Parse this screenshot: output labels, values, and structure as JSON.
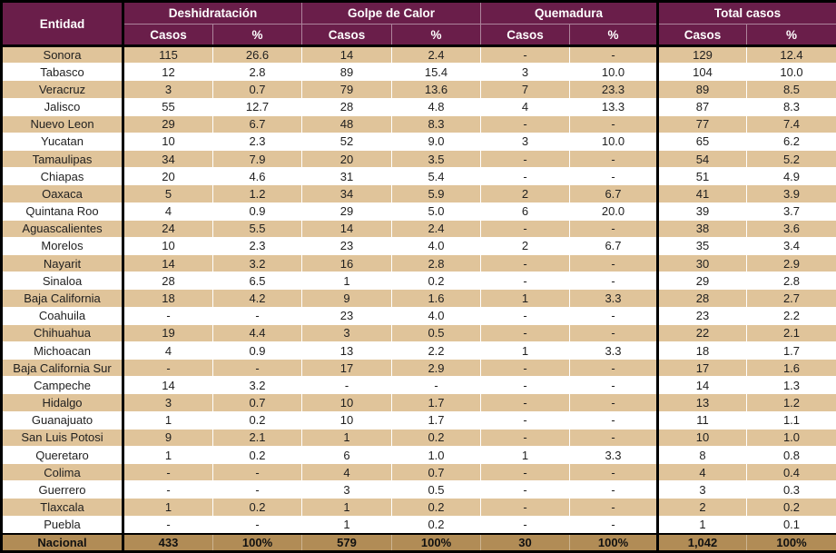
{
  "chart_data": {
    "type": "table",
    "entity_header": "Entidad",
    "groups": [
      "Deshidratación",
      "Golpe de Calor",
      "Quemadura",
      "Total casos"
    ],
    "sub_headers": [
      "Casos",
      "%"
    ],
    "rows": [
      {
        "entity": "Sonora",
        "values": [
          "115",
          "26.6",
          "14",
          "2.4",
          "-",
          "-",
          "129",
          "12.4"
        ]
      },
      {
        "entity": "Tabasco",
        "values": [
          "12",
          "2.8",
          "89",
          "15.4",
          "3",
          "10.0",
          "104",
          "10.0"
        ]
      },
      {
        "entity": "Veracruz",
        "values": [
          "3",
          "0.7",
          "79",
          "13.6",
          "7",
          "23.3",
          "89",
          "8.5"
        ]
      },
      {
        "entity": "Jalisco",
        "values": [
          "55",
          "12.7",
          "28",
          "4.8",
          "4",
          "13.3",
          "87",
          "8.3"
        ]
      },
      {
        "entity": "Nuevo Leon",
        "values": [
          "29",
          "6.7",
          "48",
          "8.3",
          "-",
          "-",
          "77",
          "7.4"
        ]
      },
      {
        "entity": "Yucatan",
        "values": [
          "10",
          "2.3",
          "52",
          "9.0",
          "3",
          "10.0",
          "65",
          "6.2"
        ]
      },
      {
        "entity": "Tamaulipas",
        "values": [
          "34",
          "7.9",
          "20",
          "3.5",
          "-",
          "-",
          "54",
          "5.2"
        ]
      },
      {
        "entity": "Chiapas",
        "values": [
          "20",
          "4.6",
          "31",
          "5.4",
          "-",
          "-",
          "51",
          "4.9"
        ]
      },
      {
        "entity": "Oaxaca",
        "values": [
          "5",
          "1.2",
          "34",
          "5.9",
          "2",
          "6.7",
          "41",
          "3.9"
        ]
      },
      {
        "entity": "Quintana Roo",
        "values": [
          "4",
          "0.9",
          "29",
          "5.0",
          "6",
          "20.0",
          "39",
          "3.7"
        ]
      },
      {
        "entity": "Aguascalientes",
        "values": [
          "24",
          "5.5",
          "14",
          "2.4",
          "-",
          "-",
          "38",
          "3.6"
        ]
      },
      {
        "entity": "Morelos",
        "values": [
          "10",
          "2.3",
          "23",
          "4.0",
          "2",
          "6.7",
          "35",
          "3.4"
        ]
      },
      {
        "entity": "Nayarit",
        "values": [
          "14",
          "3.2",
          "16",
          "2.8",
          "-",
          "-",
          "30",
          "2.9"
        ]
      },
      {
        "entity": "Sinaloa",
        "values": [
          "28",
          "6.5",
          "1",
          "0.2",
          "-",
          "-",
          "29",
          "2.8"
        ]
      },
      {
        "entity": "Baja California",
        "values": [
          "18",
          "4.2",
          "9",
          "1.6",
          "1",
          "3.3",
          "28",
          "2.7"
        ]
      },
      {
        "entity": "Coahuila",
        "values": [
          "-",
          "-",
          "23",
          "4.0",
          "-",
          "-",
          "23",
          "2.2"
        ]
      },
      {
        "entity": "Chihuahua",
        "values": [
          "19",
          "4.4",
          "3",
          "0.5",
          "-",
          "-",
          "22",
          "2.1"
        ]
      },
      {
        "entity": "Michoacan",
        "values": [
          "4",
          "0.9",
          "13",
          "2.2",
          "1",
          "3.3",
          "18",
          "1.7"
        ]
      },
      {
        "entity": "Baja California Sur",
        "values": [
          "-",
          "-",
          "17",
          "2.9",
          "-",
          "-",
          "17",
          "1.6"
        ]
      },
      {
        "entity": "Campeche",
        "values": [
          "14",
          "3.2",
          "-",
          "-",
          "-",
          "-",
          "14",
          "1.3"
        ]
      },
      {
        "entity": "Hidalgo",
        "values": [
          "3",
          "0.7",
          "10",
          "1.7",
          "-",
          "-",
          "13",
          "1.2"
        ]
      },
      {
        "entity": "Guanajuato",
        "values": [
          "1",
          "0.2",
          "10",
          "1.7",
          "-",
          "-",
          "11",
          "1.1"
        ]
      },
      {
        "entity": "San Luis Potosi",
        "values": [
          "9",
          "2.1",
          "1",
          "0.2",
          "-",
          "-",
          "10",
          "1.0"
        ]
      },
      {
        "entity": "Queretaro",
        "values": [
          "1",
          "0.2",
          "6",
          "1.0",
          "1",
          "3.3",
          "8",
          "0.8"
        ]
      },
      {
        "entity": "Colima",
        "values": [
          "-",
          "-",
          "4",
          "0.7",
          "-",
          "-",
          "4",
          "0.4"
        ]
      },
      {
        "entity": "Guerrero",
        "values": [
          "-",
          "-",
          "3",
          "0.5",
          "-",
          "-",
          "3",
          "0.3"
        ]
      },
      {
        "entity": "Tlaxcala",
        "values": [
          "1",
          "0.2",
          "1",
          "0.2",
          "-",
          "-",
          "2",
          "0.2"
        ]
      },
      {
        "entity": "Puebla",
        "values": [
          "-",
          "-",
          "1",
          "0.2",
          "-",
          "-",
          "1",
          "0.1"
        ]
      }
    ],
    "footer": {
      "entity": "Nacional",
      "values": [
        "433",
        "100%",
        "579",
        "100%",
        "30",
        "100%",
        "1,042",
        "100%"
      ]
    }
  },
  "colors": {
    "header_bg": "#6a1e4a",
    "stripe_bg": "#e0c49a",
    "footer_bg": "#b18c56",
    "border": "#000000"
  }
}
